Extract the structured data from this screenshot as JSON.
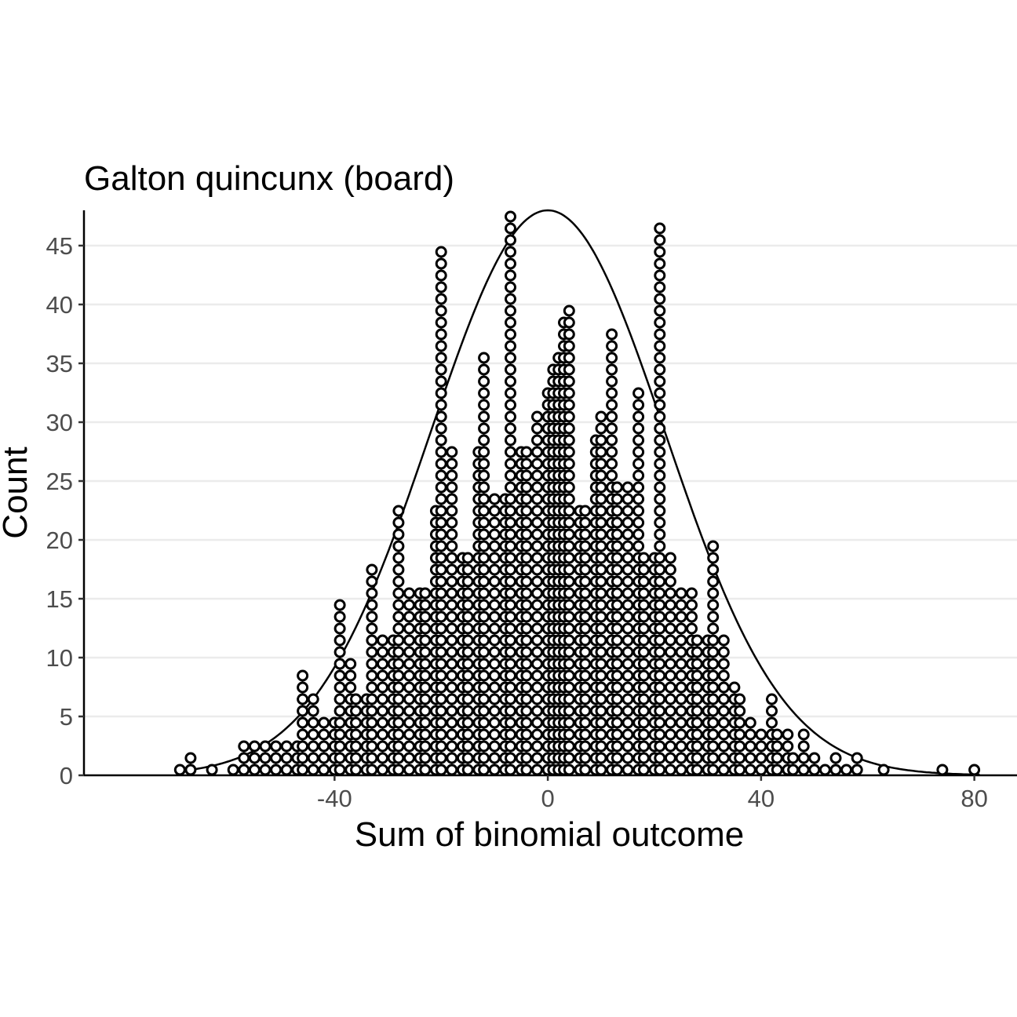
{
  "chart_data": {
    "type": "dotplot",
    "title": "Galton quincunx (board)",
    "xlabel": "Sum of binomial outcome",
    "ylabel": "Count",
    "xlim": [
      -87,
      88
    ],
    "ylim": [
      0,
      48
    ],
    "x_ticks": [
      -40,
      0,
      40,
      80
    ],
    "y_ticks": [
      0,
      5,
      10,
      15,
      20,
      25,
      30,
      35,
      40,
      45
    ],
    "grid": "horizontal major",
    "reference_curve": {
      "type": "normal",
      "mean": 0,
      "peak_count": 48,
      "sd": 22
    },
    "points": [
      [
        -69,
        1
      ],
      [
        -67,
        2
      ],
      [
        -63,
        1
      ],
      [
        -59,
        1
      ],
      [
        -57,
        3
      ],
      [
        -55,
        3
      ],
      [
        -53,
        3
      ],
      [
        -51,
        3
      ],
      [
        -49,
        3
      ],
      [
        -47,
        3
      ],
      [
        -46,
        9
      ],
      [
        -44,
        7
      ],
      [
        -42,
        5
      ],
      [
        -40,
        5
      ],
      [
        -39,
        15
      ],
      [
        -37,
        10
      ],
      [
        -36,
        7
      ],
      [
        -34,
        7
      ],
      [
        -33,
        18
      ],
      [
        -31,
        12
      ],
      [
        -29,
        12
      ],
      [
        -28,
        23
      ],
      [
        -26,
        16
      ],
      [
        -24,
        16
      ],
      [
        -23,
        16
      ],
      [
        -21,
        23
      ],
      [
        -20,
        45
      ],
      [
        -18,
        28
      ],
      [
        -16,
        19
      ],
      [
        -15,
        19
      ],
      [
        -13,
        28
      ],
      [
        -12,
        36
      ],
      [
        -10,
        24
      ],
      [
        -8,
        24
      ],
      [
        -7,
        48
      ],
      [
        -5,
        28
      ],
      [
        -4,
        28
      ],
      [
        -2,
        31
      ],
      [
        0,
        33
      ],
      [
        1,
        35
      ],
      [
        2,
        36
      ],
      [
        3,
        39
      ],
      [
        4,
        40
      ],
      [
        6,
        23
      ],
      [
        7,
        23
      ],
      [
        9,
        29
      ],
      [
        10,
        31
      ],
      [
        12,
        38
      ],
      [
        13,
        25
      ],
      [
        15,
        25
      ],
      [
        17,
        33
      ],
      [
        18,
        19
      ],
      [
        20,
        19
      ],
      [
        21,
        47
      ],
      [
        23,
        19
      ],
      [
        25,
        16
      ],
      [
        27,
        16
      ],
      [
        28,
        12
      ],
      [
        30,
        12
      ],
      [
        31,
        20
      ],
      [
        33,
        12
      ],
      [
        35,
        8
      ],
      [
        36,
        7
      ],
      [
        38,
        5
      ],
      [
        40,
        4
      ],
      [
        42,
        7
      ],
      [
        43,
        4
      ],
      [
        45,
        4
      ],
      [
        46,
        2
      ],
      [
        48,
        4
      ],
      [
        50,
        2
      ],
      [
        52,
        1
      ],
      [
        54,
        2
      ],
      [
        56,
        1
      ],
      [
        58,
        2
      ],
      [
        63,
        1
      ],
      [
        74,
        1
      ],
      [
        80,
        1
      ]
    ]
  }
}
